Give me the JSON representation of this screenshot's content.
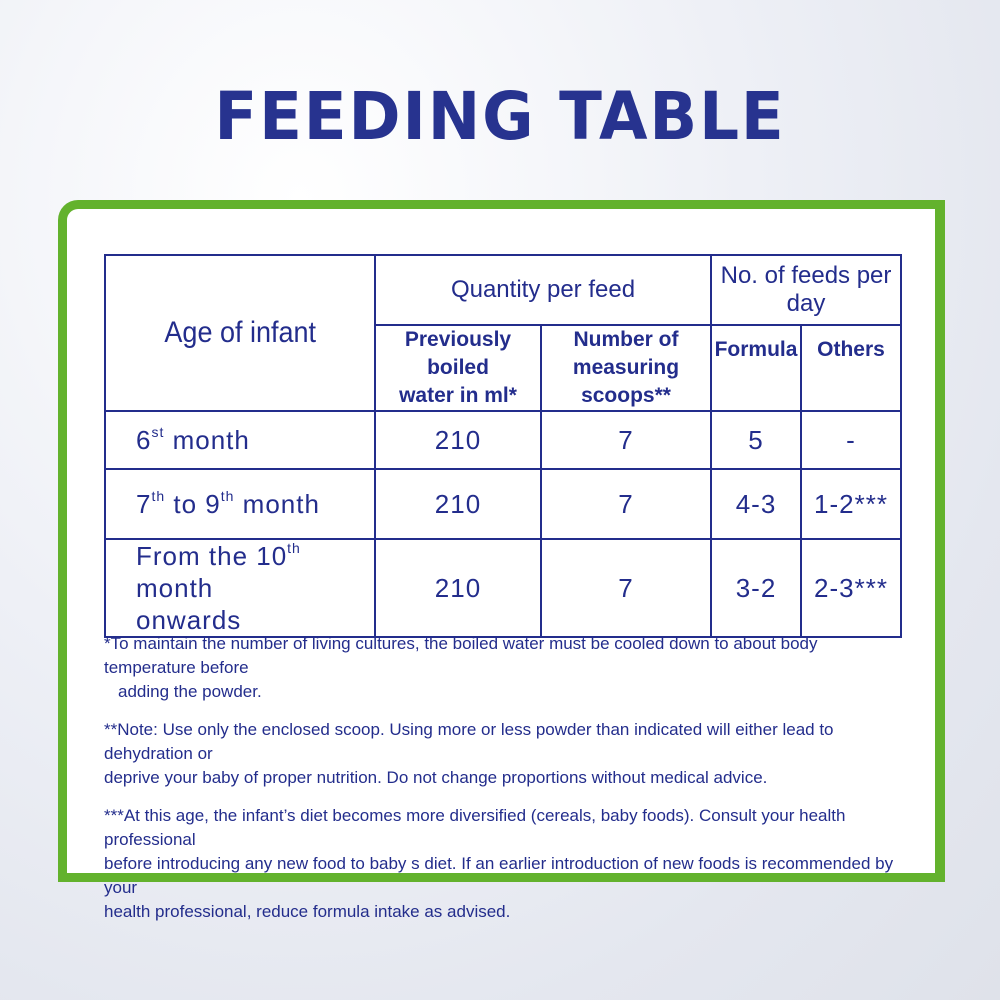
{
  "title": "FEEDING TABLE",
  "table": {
    "age_header": "Age of infant",
    "quantity_header": "Quantity per feed",
    "feeds_header": "No. of feeds per day",
    "water_header_line1": "Previously boiled",
    "water_header_line2": "water in ml*",
    "scoops_header_line1": "Number of",
    "scoops_header_line2": "measuring scoops**",
    "formula_header": "Formula",
    "others_header": "Others",
    "rows": [
      {
        "age_a": "6",
        "age_a_sup": "st",
        "age_b": " month",
        "age_c": "",
        "age_c_sup": "",
        "age_d": "",
        "age_line2": "",
        "water": "210",
        "scoops": "7",
        "formula": "5",
        "others": "-"
      },
      {
        "age_a": "7",
        "age_a_sup": "th",
        "age_b": " to 9",
        "age_c": "",
        "age_c_sup": "th",
        "age_d": " month",
        "age_line2": "",
        "water": "210",
        "scoops": "7",
        "formula": "4-3",
        "others": "1-2***"
      },
      {
        "age_a": "From the 10",
        "age_a_sup": "th",
        "age_b": " month",
        "age_c": "",
        "age_c_sup": "",
        "age_d": "",
        "age_line2": "onwards",
        "water": "210",
        "scoops": "7",
        "formula": "3-2",
        "others": "2-3***"
      }
    ]
  },
  "notes": {
    "note1_line1": "*To maintain the number of living cultures, the boiled water must be cooled down to about body temperature before",
    "note1_line2": "adding the powder.",
    "note2_line1": "**Note: Use only the enclosed scoop. Using more or less powder than indicated will either lead to dehydration or",
    "note2_line2": "deprive your baby of proper nutrition. Do not change proportions without medical advice.",
    "note3_line1": "***At this age, the infant’s diet becomes more diversified (cereals, baby foods). Consult your health professional",
    "note3_line2": "before introducing any new food to baby s diet. If an earlier introduction of new foods is recommended by your",
    "note3_line3": "health professional, reduce formula intake as advised."
  },
  "colors": {
    "brand_blue": "#232d8c",
    "frame_green": "#63b22d"
  }
}
